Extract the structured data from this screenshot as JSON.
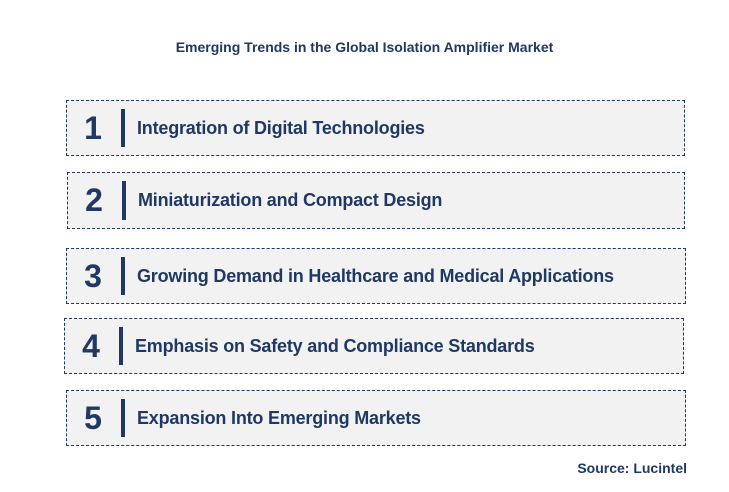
{
  "title": "Emerging Trends in the Global Isolation Amplifier Market",
  "trends": [
    {
      "number": "1",
      "label": "Integration of Digital Technologies"
    },
    {
      "number": "2",
      "label": "Miniaturization and Compact Design"
    },
    {
      "number": "3",
      "label": "Growing Demand in Healthcare and Medical Applications"
    },
    {
      "number": "4",
      "label": "Emphasis on Safety and Compliance Standards"
    },
    {
      "number": "5",
      "label": "Expansion Into Emerging Markets"
    }
  ],
  "source": "Source: Lucintel",
  "colors": {
    "text": "#1f3864",
    "box_background": "#f2f2f2",
    "box_border": "#1f3864"
  }
}
